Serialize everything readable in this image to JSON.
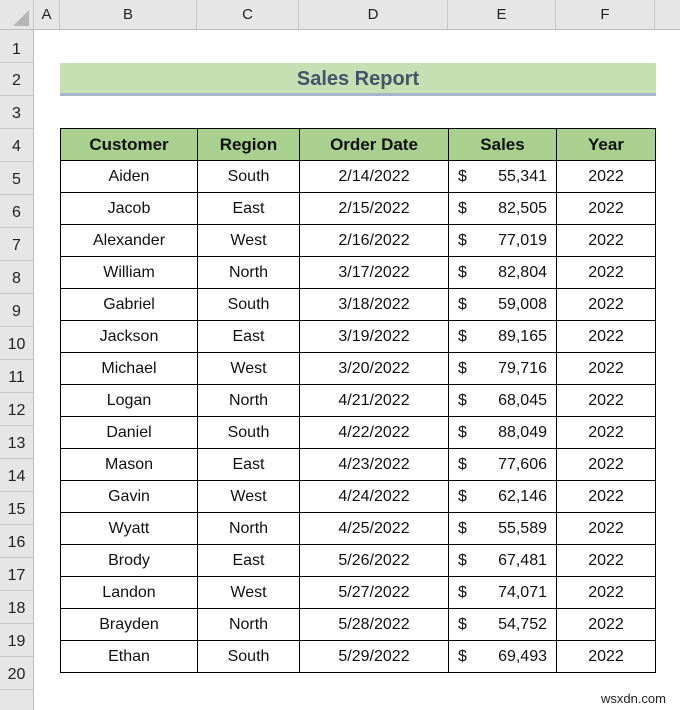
{
  "spreadsheet": {
    "column_headers": [
      "A",
      "B",
      "C",
      "D",
      "E",
      "F"
    ],
    "row_headers": [
      "1",
      "2",
      "3",
      "4",
      "5",
      "6",
      "7",
      "8",
      "9",
      "10",
      "11",
      "12",
      "13",
      "14",
      "15",
      "16",
      "17",
      "18",
      "19",
      "20"
    ]
  },
  "report": {
    "title": "Sales Report",
    "colors": {
      "title_fill": "#c6e0b4",
      "title_text": "#44546a",
      "header_fill": "#a9d08e"
    },
    "columns": [
      "Customer",
      "Region",
      "Order Date",
      "Sales",
      "Year"
    ],
    "currency_symbol": "$",
    "rows": [
      {
        "customer": "Aiden",
        "region": "South",
        "date": "2/14/2022",
        "sales": "55,341",
        "year": "2022"
      },
      {
        "customer": "Jacob",
        "region": "East",
        "date": "2/15/2022",
        "sales": "82,505",
        "year": "2022"
      },
      {
        "customer": "Alexander",
        "region": "West",
        "date": "2/16/2022",
        "sales": "77,019",
        "year": "2022"
      },
      {
        "customer": "William",
        "region": "North",
        "date": "3/17/2022",
        "sales": "82,804",
        "year": "2022"
      },
      {
        "customer": "Gabriel",
        "region": "South",
        "date": "3/18/2022",
        "sales": "59,008",
        "year": "2022"
      },
      {
        "customer": "Jackson",
        "region": "East",
        "date": "3/19/2022",
        "sales": "89,165",
        "year": "2022"
      },
      {
        "customer": "Michael",
        "region": "West",
        "date": "3/20/2022",
        "sales": "79,716",
        "year": "2022"
      },
      {
        "customer": "Logan",
        "region": "North",
        "date": "4/21/2022",
        "sales": "68,045",
        "year": "2022"
      },
      {
        "customer": "Daniel",
        "region": "South",
        "date": "4/22/2022",
        "sales": "88,049",
        "year": "2022"
      },
      {
        "customer": "Mason",
        "region": "East",
        "date": "4/23/2022",
        "sales": "77,606",
        "year": "2022"
      },
      {
        "customer": "Gavin",
        "region": "West",
        "date": "4/24/2022",
        "sales": "62,146",
        "year": "2022"
      },
      {
        "customer": "Wyatt",
        "region": "North",
        "date": "4/25/2022",
        "sales": "55,589",
        "year": "2022"
      },
      {
        "customer": "Brody",
        "region": "East",
        "date": "5/26/2022",
        "sales": "67,481",
        "year": "2022"
      },
      {
        "customer": "Landon",
        "region": "West",
        "date": "5/27/2022",
        "sales": "74,071",
        "year": "2022"
      },
      {
        "customer": "Brayden",
        "region": "North",
        "date": "5/28/2022",
        "sales": "54,752",
        "year": "2022"
      },
      {
        "customer": "Ethan",
        "region": "South",
        "date": "5/29/2022",
        "sales": "69,493",
        "year": "2022"
      }
    ]
  },
  "watermark": "wsxdn.com"
}
